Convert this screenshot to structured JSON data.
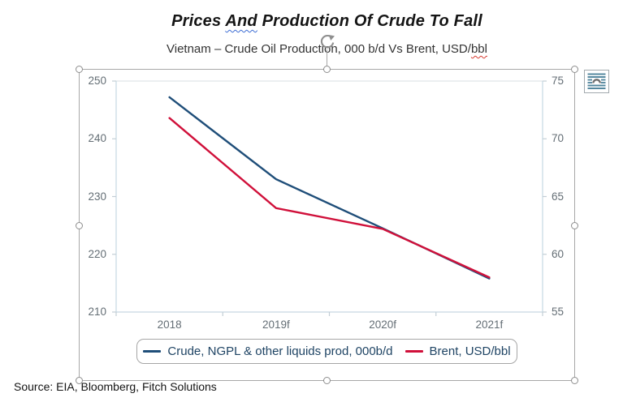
{
  "header": {
    "title": {
      "full": "Prices And Production Of Crude To Fall",
      "before": "Prices ",
      "grammar_flagged": "And",
      "after": " Production Of Crude To Fall"
    },
    "subtitle": {
      "full": "Vietnam – Crude Oil Production, 000 b/d Vs Brent, USD/bbl",
      "before": "Vietnam – Crude Oil Production, 000 b/d Vs Brent, USD/",
      "spell_flagged": "bbl"
    },
    "spellcheck_colors": {
      "grammar_wavy": "#3b6cd4",
      "spelling_wavy": "#d83b31"
    }
  },
  "chart_data": {
    "type": "line",
    "title": "Prices And Production Of Crude To Fall",
    "subtitle": "Vietnam – Crude Oil Production, 000 b/d Vs Brent, USD/bbl",
    "categories": [
      "2018",
      "2019f",
      "2020f",
      "2021f"
    ],
    "series": [
      {
        "name": "Crude, NGPL & other liquids prod, 000b/d",
        "axis": "left",
        "color": "#1f4e79",
        "values": [
          247.2,
          233.0,
          224.5,
          215.8
        ]
      },
      {
        "name": "Brent, USD/bbl",
        "axis": "right",
        "color": "#d0103a",
        "values": [
          71.8,
          64.0,
          62.2,
          58.0
        ]
      }
    ],
    "left_axis": {
      "min": 210,
      "max": 250,
      "ticks": [
        250,
        240,
        230,
        220,
        210
      ]
    },
    "right_axis": {
      "min": 55,
      "max": 75,
      "ticks": [
        75,
        70,
        65,
        60,
        55
      ]
    },
    "grid": false,
    "legend_position": "bottom",
    "axis_label_color": "#646e75",
    "legend_text_color": "#1f4464"
  },
  "footer": {
    "source_line": "Source: EIA, Bloomberg, Fitch Solutions"
  },
  "icons": {
    "rotate_handle_icon": "circular-arrow",
    "layout_options_icon": "layout-options-text-wrap-arch"
  }
}
